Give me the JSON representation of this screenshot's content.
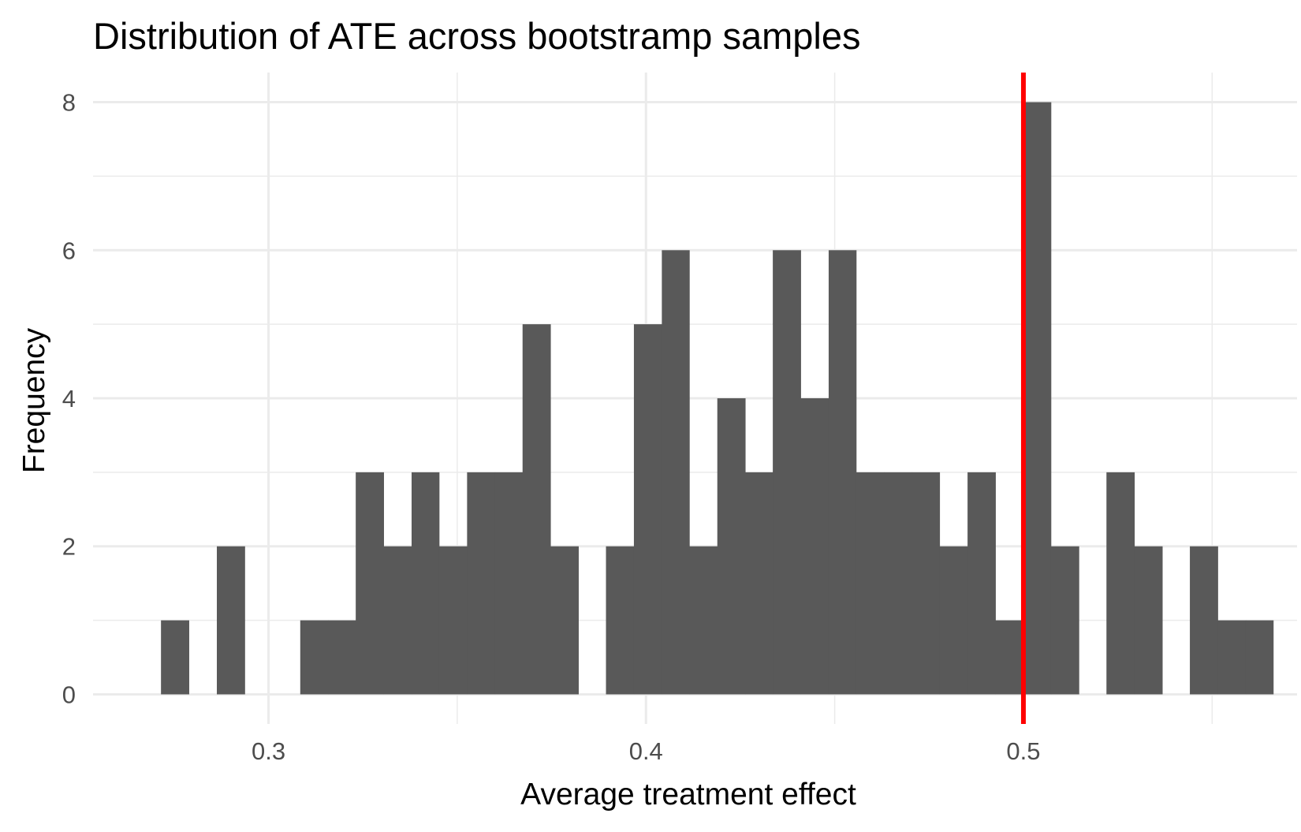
{
  "chart_data": {
    "type": "bar",
    "subtype": "histogram",
    "title": "Distribution of ATE across bootstramp samples",
    "xlabel": "Average treatment effect",
    "ylabel": "Frequency",
    "xlim": [
      0.2535,
      0.5725
    ],
    "ylim": [
      -0.4,
      8.4
    ],
    "x_ticks": [
      0.3,
      0.4,
      0.5
    ],
    "x_tick_labels": [
      "0.3",
      "0.4",
      "0.5"
    ],
    "y_ticks": [
      0,
      2,
      4,
      6,
      8
    ],
    "y_tick_labels": [
      "0",
      "2",
      "4",
      "6",
      "8"
    ],
    "grid": true,
    "bar_color": "#595959",
    "bins": [
      {
        "x0": 0.2715,
        "x1": 0.2789,
        "count": 1
      },
      {
        "x0": 0.2789,
        "x1": 0.2863,
        "count": 0
      },
      {
        "x0": 0.2863,
        "x1": 0.2937,
        "count": 2
      },
      {
        "x0": 0.2937,
        "x1": 0.301,
        "count": 0
      },
      {
        "x0": 0.301,
        "x1": 0.3084,
        "count": 0
      },
      {
        "x0": 0.3084,
        "x1": 0.3158,
        "count": 1
      },
      {
        "x0": 0.3158,
        "x1": 0.3231,
        "count": 1
      },
      {
        "x0": 0.3231,
        "x1": 0.3305,
        "count": 3
      },
      {
        "x0": 0.3305,
        "x1": 0.3379,
        "count": 2
      },
      {
        "x0": 0.3379,
        "x1": 0.3452,
        "count": 3
      },
      {
        "x0": 0.3452,
        "x1": 0.3526,
        "count": 2
      },
      {
        "x0": 0.3526,
        "x1": 0.36,
        "count": 3
      },
      {
        "x0": 0.36,
        "x1": 0.3673,
        "count": 3
      },
      {
        "x0": 0.3673,
        "x1": 0.3747,
        "count": 5
      },
      {
        "x0": 0.3747,
        "x1": 0.3821,
        "count": 2
      },
      {
        "x0": 0.3821,
        "x1": 0.3894,
        "count": 0
      },
      {
        "x0": 0.3894,
        "x1": 0.3968,
        "count": 2
      },
      {
        "x0": 0.3968,
        "x1": 0.4042,
        "count": 5
      },
      {
        "x0": 0.4042,
        "x1": 0.4115,
        "count": 6
      },
      {
        "x0": 0.4115,
        "x1": 0.4189,
        "count": 2
      },
      {
        "x0": 0.4189,
        "x1": 0.4263,
        "count": 4
      },
      {
        "x0": 0.4263,
        "x1": 0.4336,
        "count": 3
      },
      {
        "x0": 0.4336,
        "x1": 0.441,
        "count": 6
      },
      {
        "x0": 0.441,
        "x1": 0.4484,
        "count": 4
      },
      {
        "x0": 0.4484,
        "x1": 0.4557,
        "count": 6
      },
      {
        "x0": 0.4557,
        "x1": 0.4631,
        "count": 3
      },
      {
        "x0": 0.4631,
        "x1": 0.4705,
        "count": 3
      },
      {
        "x0": 0.4705,
        "x1": 0.4778,
        "count": 3
      },
      {
        "x0": 0.4778,
        "x1": 0.4852,
        "count": 2
      },
      {
        "x0": 0.4852,
        "x1": 0.4926,
        "count": 3
      },
      {
        "x0": 0.4926,
        "x1": 0.4999,
        "count": 1
      },
      {
        "x0": 0.4999,
        "x1": 0.5073,
        "count": 8
      },
      {
        "x0": 0.5073,
        "x1": 0.5147,
        "count": 2
      },
      {
        "x0": 0.5147,
        "x1": 0.522,
        "count": 0
      },
      {
        "x0": 0.522,
        "x1": 0.5294,
        "count": 3
      },
      {
        "x0": 0.5294,
        "x1": 0.5368,
        "count": 2
      },
      {
        "x0": 0.5368,
        "x1": 0.5441,
        "count": 0
      },
      {
        "x0": 0.5441,
        "x1": 0.5515,
        "count": 2
      },
      {
        "x0": 0.5515,
        "x1": 0.5589,
        "count": 1
      },
      {
        "x0": 0.5589,
        "x1": 0.5662,
        "count": 1
      }
    ],
    "reference_line": {
      "orientation": "vertical",
      "x": 0.5,
      "color": "#ff0000"
    }
  }
}
